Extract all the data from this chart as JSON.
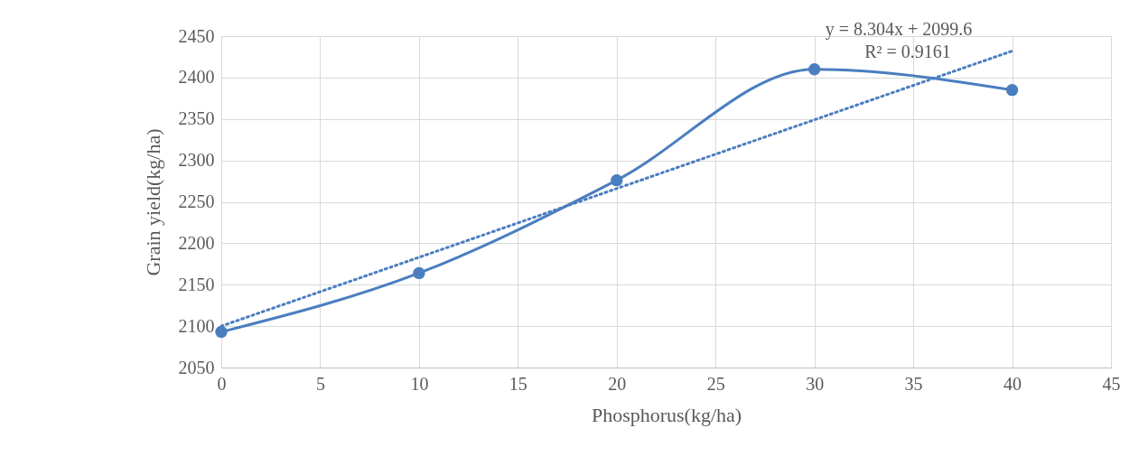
{
  "chart_data": {
    "type": "line",
    "xlabel": "Phosphorus(kg/ha)",
    "ylabel": "Grain yield(kg/ha)",
    "x": [
      0,
      10,
      20,
      30,
      40
    ],
    "series": [
      {
        "color": "#4a7ebf",
        "values": [
          2093,
          2164,
          2276,
          2410,
          2385
        ]
      },
      {
        "type": "line",
        "x": [
          0,
          40
        ],
        "values": [
          2100,
          2432
        ],
        "color": "#4a7ebf",
        "line_style": "dotted",
        "marker": "none"
      }
    ],
    "xlim": [
      0,
      45
    ],
    "xticks": [
      0,
      5,
      10,
      15,
      20,
      25,
      30,
      35,
      40,
      45
    ],
    "ylim": [
      2050,
      2450
    ],
    "yticks": [
      2050,
      2100,
      2150,
      2200,
      2250,
      2300,
      2350,
      2400,
      2450
    ],
    "grid": true,
    "marker": "circle",
    "line_style": "solid",
    "annotations": [
      "y = 8.304x + 2099.6",
      "R² = 0.9161"
    ]
  }
}
